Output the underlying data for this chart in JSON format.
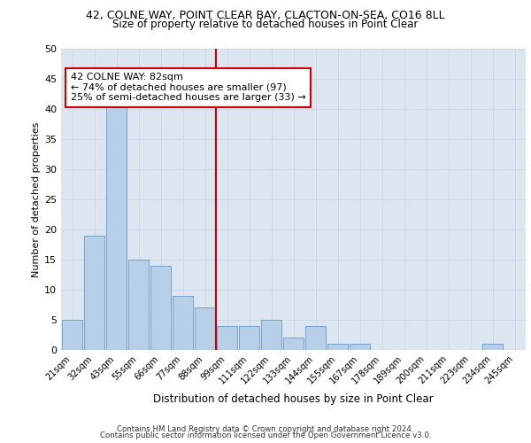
{
  "title_line1": "42, COLNE WAY, POINT CLEAR BAY, CLACTON-ON-SEA, CO16 8LL",
  "title_line2": "Size of property relative to detached houses in Point Clear",
  "xlabel": "Distribution of detached houses by size in Point Clear",
  "ylabel": "Number of detached properties",
  "categories": [
    "21sqm",
    "32sqm",
    "43sqm",
    "55sqm",
    "66sqm",
    "77sqm",
    "88sqm",
    "99sqm",
    "111sqm",
    "122sqm",
    "133sqm",
    "144sqm",
    "155sqm",
    "167sqm",
    "178sqm",
    "189sqm",
    "200sqm",
    "211sqm",
    "223sqm",
    "234sqm",
    "245sqm"
  ],
  "values": [
    5,
    19,
    41,
    15,
    14,
    9,
    7,
    4,
    4,
    5,
    2,
    4,
    1,
    1,
    0,
    0,
    0,
    0,
    0,
    1,
    0
  ],
  "bar_color": "#b8cfe8",
  "bar_edge_color": "#6699cc",
  "grid_color": "#d0d8e8",
  "bg_color": "#dce6f1",
  "vline_x": 6.5,
  "vline_color": "#cc0000",
  "annotation_text": "42 COLNE WAY: 82sqm\n← 74% of detached houses are smaller (97)\n25% of semi-detached houses are larger (33) →",
  "annotation_box_color": "#cc0000",
  "ylim": [
    0,
    50
  ],
  "yticks": [
    0,
    5,
    10,
    15,
    20,
    25,
    30,
    35,
    40,
    45,
    50
  ],
  "footer_line1": "Contains HM Land Registry data © Crown copyright and database right 2024.",
  "footer_line2": "Contains public sector information licensed under the Open Government Licence v3.0."
}
